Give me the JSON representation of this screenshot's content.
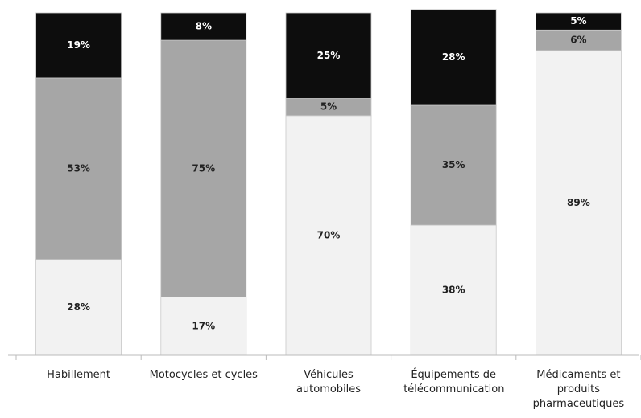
{
  "chart_data": {
    "type": "stacked_bar",
    "categories": [
      "Habillement",
      "Motocycles et cycles",
      "Véhicules automobiles",
      "Équipements de télécommunication",
      "Médicaments et produits pharmaceutiques"
    ],
    "series": [
      {
        "color": "#f2f2f2",
        "values": [
          28,
          17,
          70,
          38,
          89
        ],
        "value_labels": [
          "28%",
          "17%",
          "70%",
          "38%",
          "89%"
        ]
      },
      {
        "color": "#a6a6a6",
        "values": [
          53,
          75,
          5,
          35,
          6
        ],
        "value_labels": [
          "53%",
          "75%",
          "5%",
          "35%",
          "6%"
        ]
      },
      {
        "color": "#0d0d0d",
        "values": [
          19,
          8,
          25,
          28,
          5
        ],
        "value_labels": [
          "19%",
          "8%",
          "25%",
          "28%",
          "5%"
        ]
      }
    ],
    "ylim": [
      0,
      100
    ]
  }
}
